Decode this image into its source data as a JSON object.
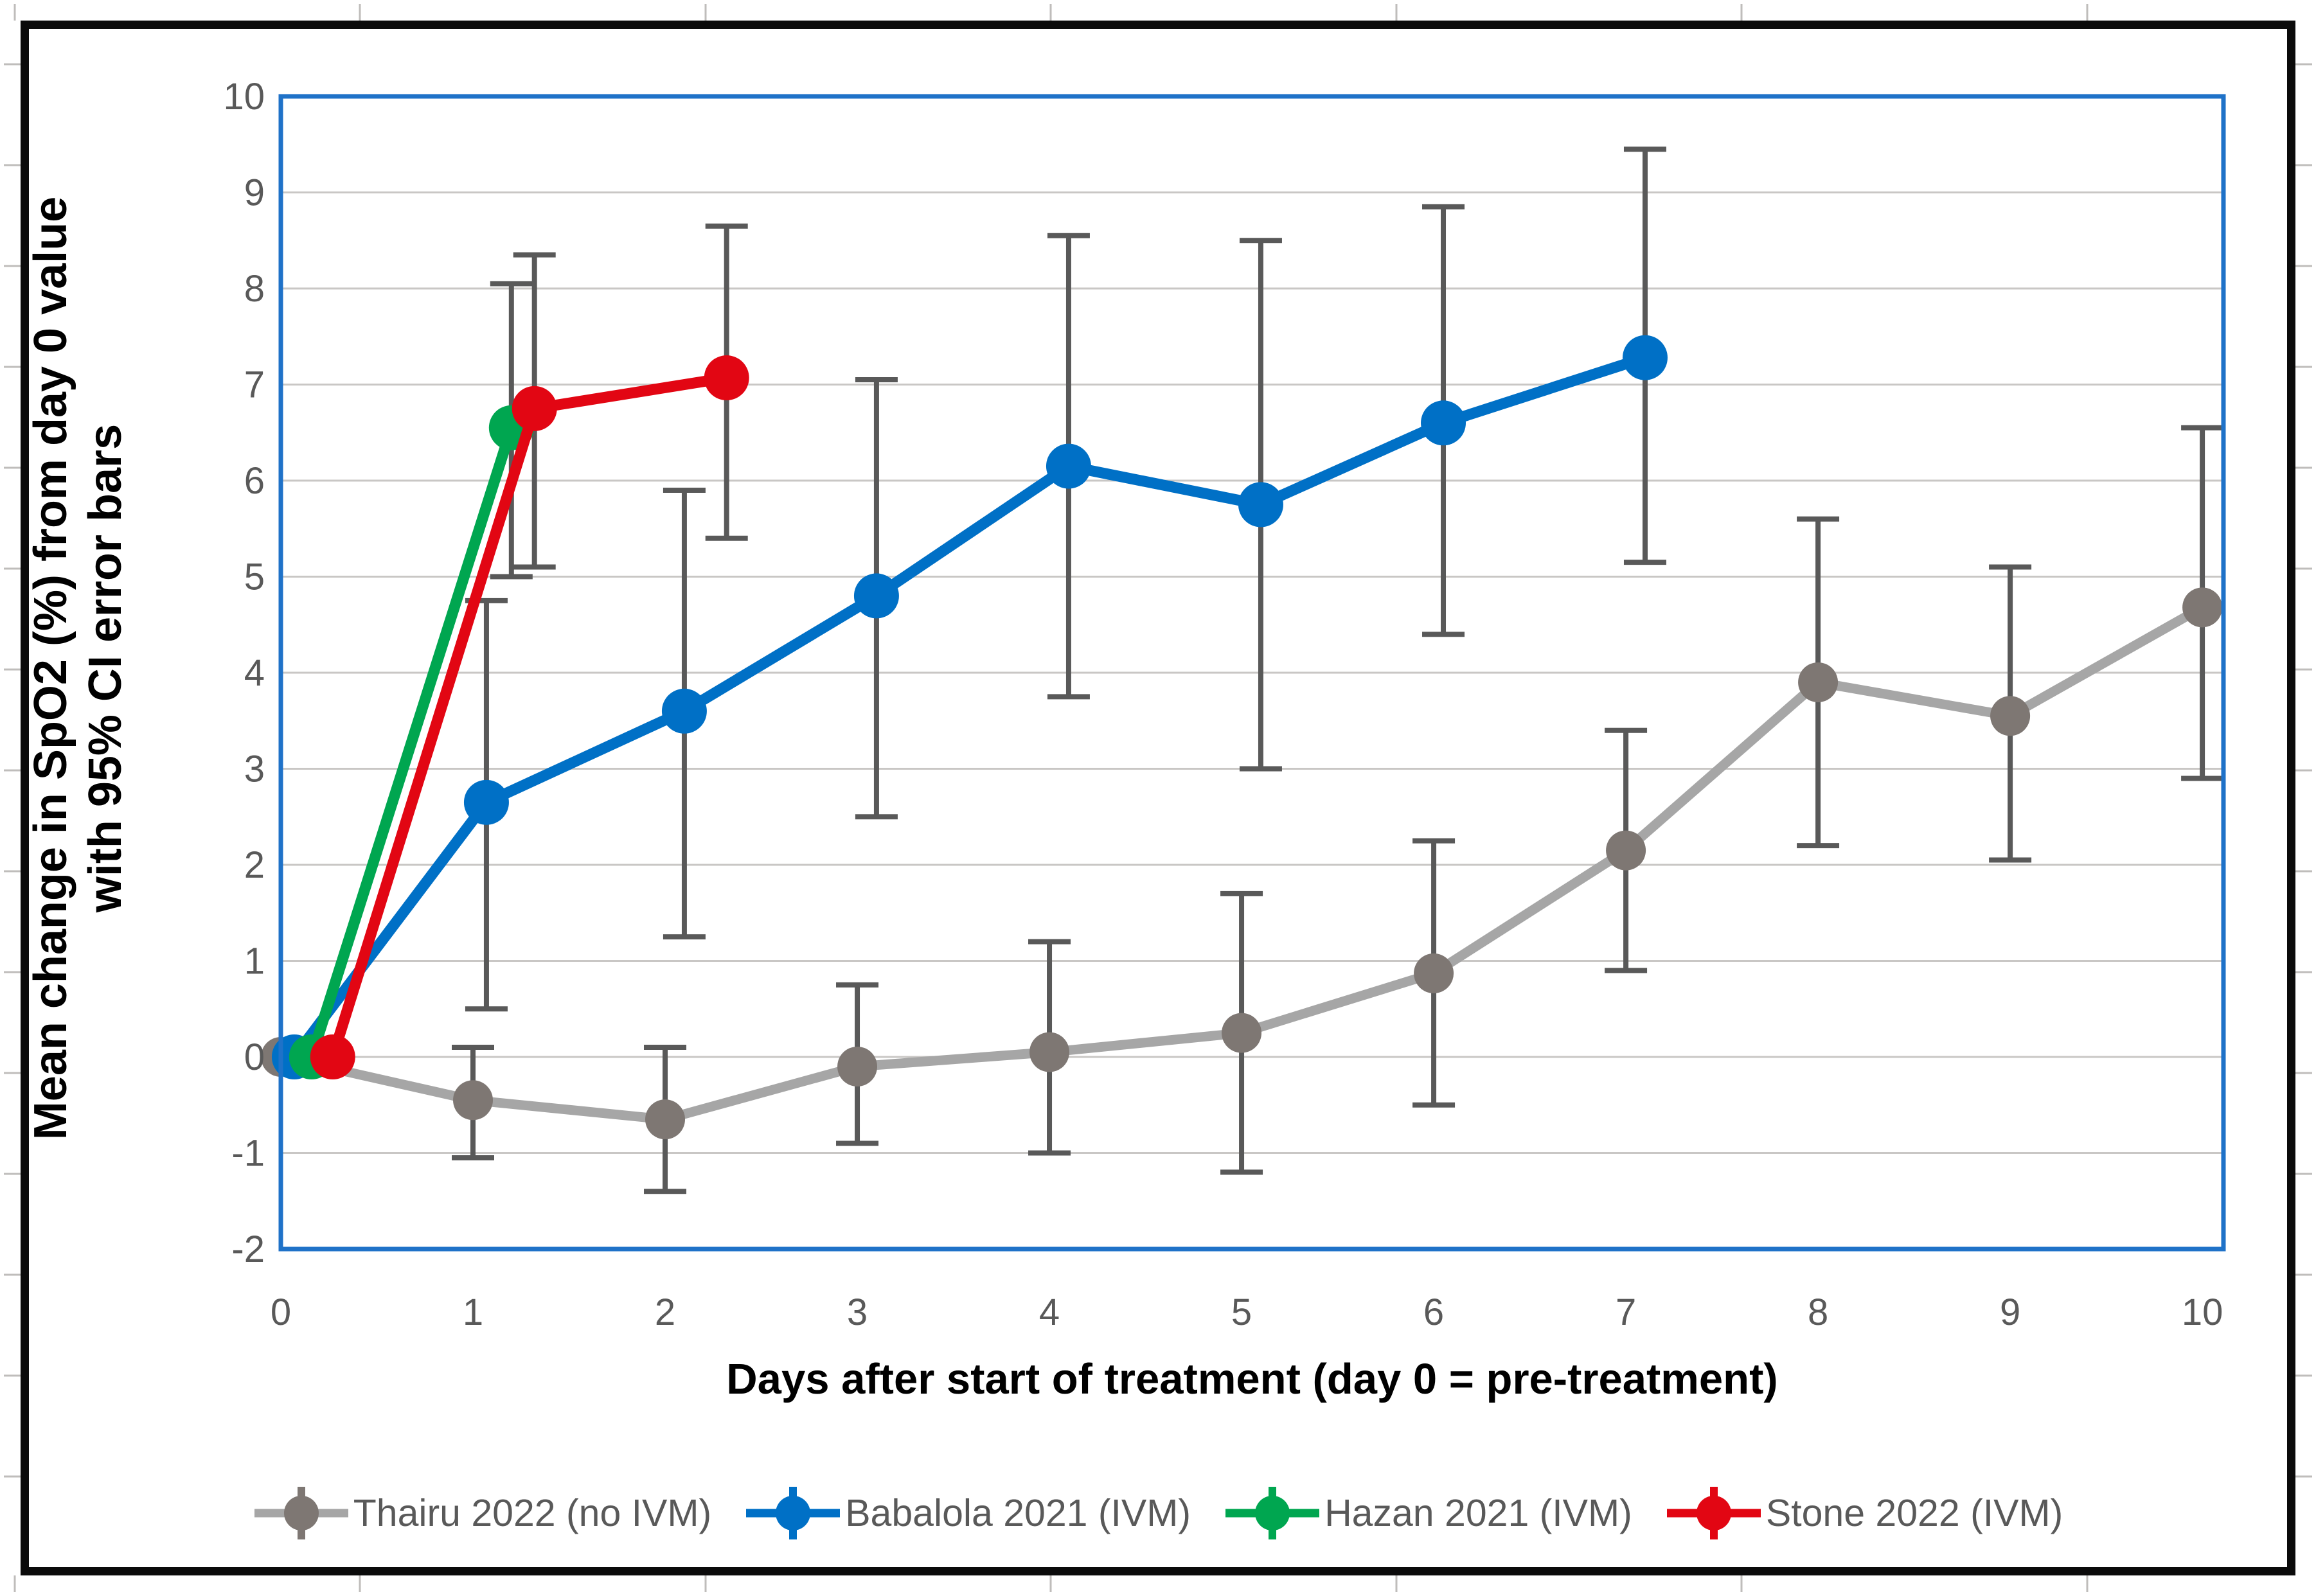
{
  "figure": {
    "y_axis_title_line1": "Mean change in SpO2 (%) from day 0 value",
    "y_axis_title_line2": "with 95% CI error bars",
    "x_axis_title": "Days after start of treatment (day 0 = pre-treatment)"
  },
  "chart_data": {
    "type": "line",
    "title": "",
    "xlabel": "Days after start of treatment (day 0 = pre-treatment)",
    "ylabel": "Mean change in SpO2 (%) from day 0 value with 95% CI error bars",
    "xlim": [
      0,
      10.11
    ],
    "ylim": [
      -2,
      10
    ],
    "x_ticks": [
      "0",
      "1",
      "2",
      "3",
      "4",
      "5",
      "6",
      "7",
      "8",
      "9",
      "10"
    ],
    "y_ticks": [
      "10",
      "9",
      "8",
      "7",
      "6",
      "5",
      "4",
      "3",
      "2",
      "1",
      "0",
      "-1",
      "-2"
    ],
    "y_tick_values": [
      10,
      9,
      8,
      7,
      6,
      5,
      4,
      3,
      2,
      1,
      0,
      -1,
      -2
    ],
    "x_tick_values": [
      0,
      1,
      2,
      3,
      4,
      5,
      6,
      7,
      8,
      9,
      10
    ],
    "grid": "horizontal",
    "legend_position": "bottom",
    "colors": {
      "plot_border": "#1f72c8",
      "gridline": "#c9c7c5",
      "error_bar": "#595959",
      "tick_label": "#595959",
      "legend_text": "#595959",
      "edge_stub": "#bfbdbb"
    },
    "series": [
      {
        "name": "Thairu 2022 (no IVM)",
        "line_color": "#a6a6a6",
        "marker_color": "#7e7773",
        "x": [
          0,
          1,
          2,
          3,
          4,
          5,
          6,
          7,
          8,
          9,
          10
        ],
        "y": [
          0,
          -0.45,
          -0.65,
          -0.1,
          0.05,
          0.25,
          0.87,
          2.15,
          3.9,
          3.55,
          4.68
        ],
        "ci_low": [
          null,
          -1.05,
          -1.4,
          -0.9,
          -1.0,
          -1.2,
          -0.5,
          0.9,
          2.2,
          2.05,
          2.9
        ],
        "ci_high": [
          null,
          0.1,
          0.1,
          0.75,
          1.2,
          1.7,
          2.25,
          3.4,
          5.6,
          5.1,
          6.55
        ]
      },
      {
        "name": "Babalola 2021 (IVM)",
        "line_color": "#0070c6",
        "marker_color": "#0070c6",
        "x": [
          0.07,
          1.07,
          2.1,
          3.1,
          4.1,
          5.1,
          6.05,
          7.1
        ],
        "y": [
          0,
          2.65,
          3.6,
          4.8,
          6.15,
          5.75,
          6.6,
          7.28
        ],
        "ci_low": [
          null,
          0.5,
          1.25,
          2.5,
          3.75,
          3.0,
          4.4,
          5.15
        ],
        "ci_high": [
          null,
          4.75,
          5.9,
          7.05,
          8.55,
          8.5,
          8.85,
          9.45
        ]
      },
      {
        "name": "Hazan 2021 (IVM)",
        "line_color": "#00a650",
        "marker_color": "#00a650",
        "x": [
          0.16,
          1.2
        ],
        "y": [
          0,
          6.55
        ],
        "ci_low": [
          null,
          5.0
        ],
        "ci_high": [
          null,
          8.05
        ]
      },
      {
        "name": "Stone 2022 (IVM)",
        "line_color": "#e20613",
        "marker_color": "#e20613",
        "x": [
          0.27,
          1.32,
          2.32
        ],
        "y": [
          0,
          6.75,
          7.07
        ],
        "ci_low": [
          null,
          5.1,
          5.4
        ],
        "ci_high": [
          null,
          8.35,
          8.65
        ]
      }
    ]
  }
}
